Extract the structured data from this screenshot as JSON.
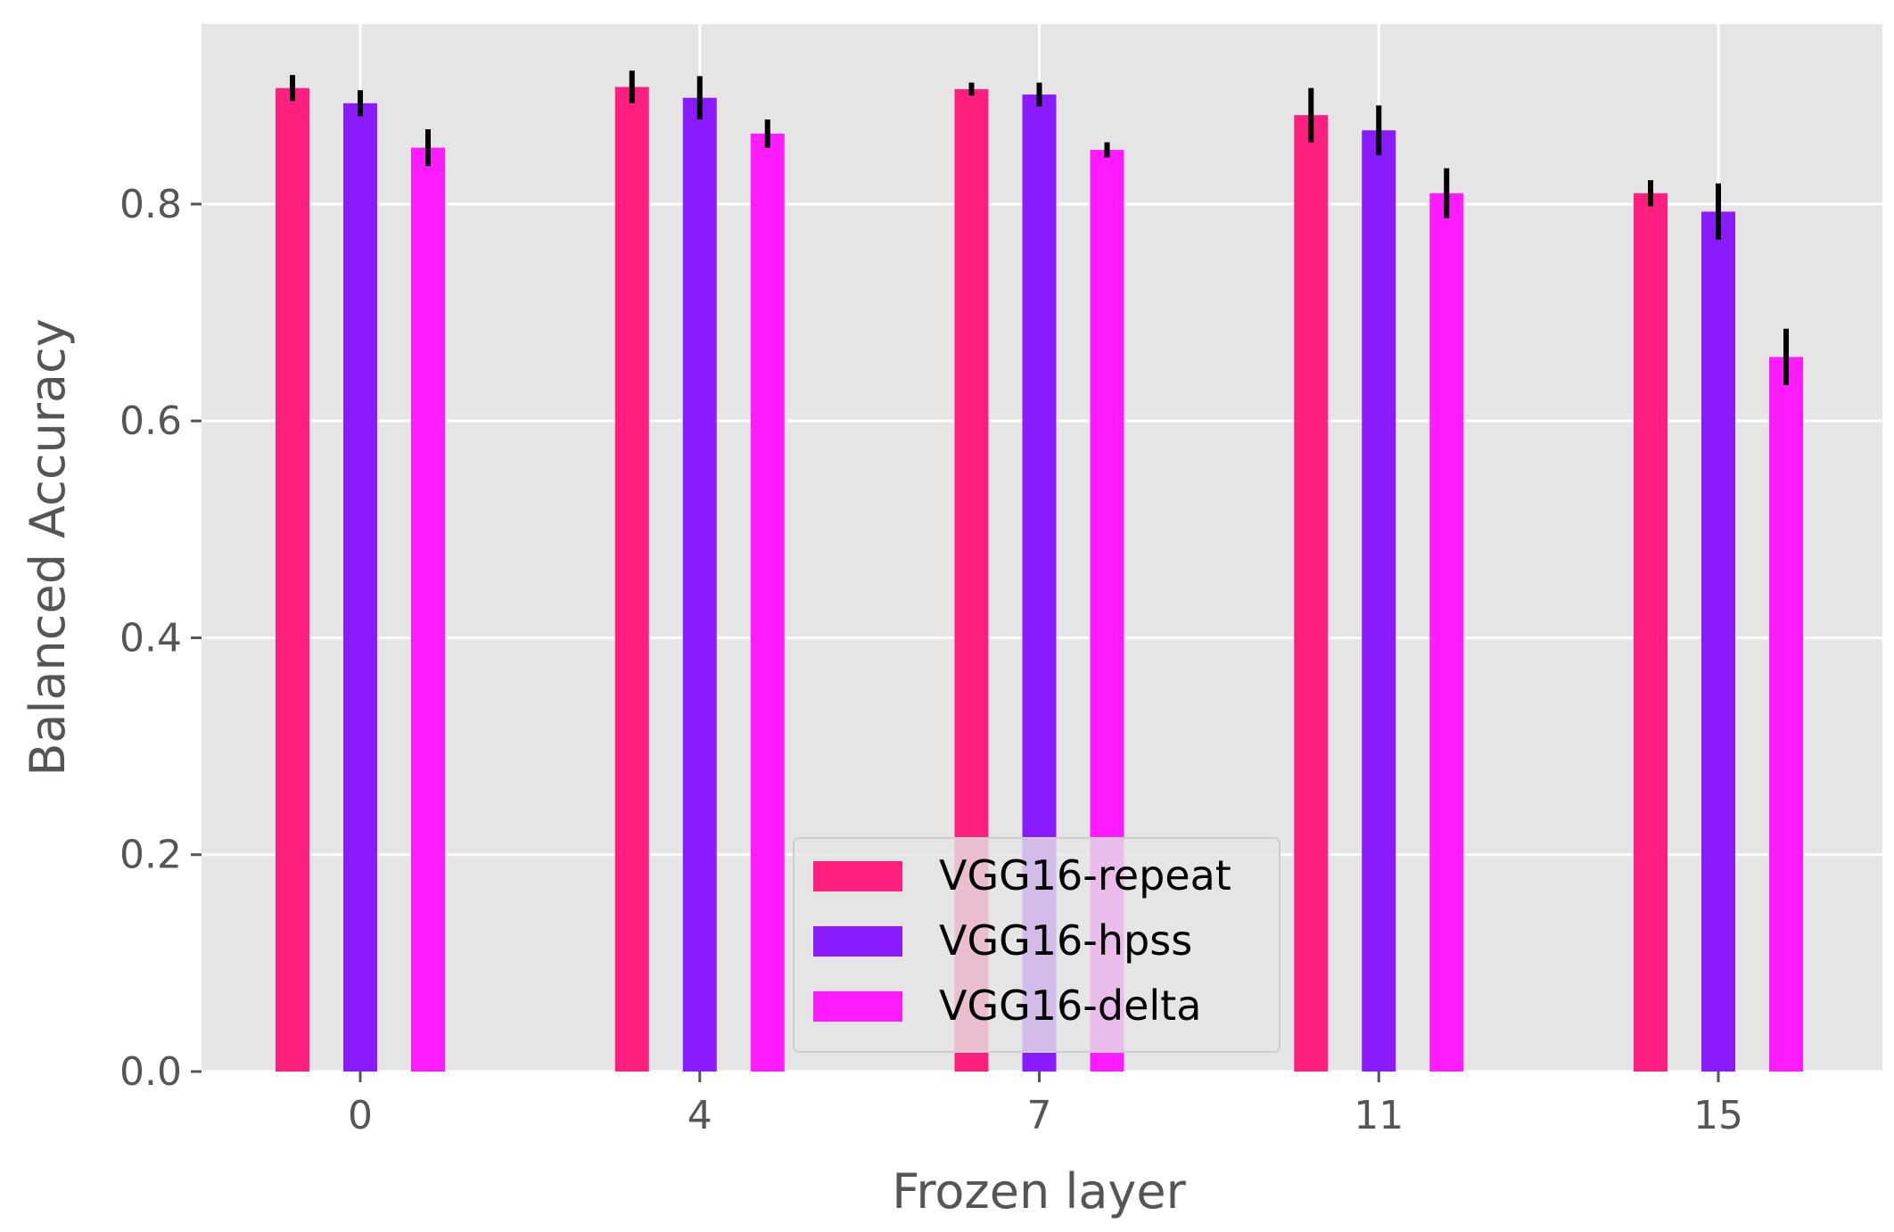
{
  "chart_data": {
    "type": "bar",
    "title": "",
    "xlabel": "Frozen layer",
    "ylabel": "Balanced Accuracy",
    "categories": [
      "0",
      "4",
      "7",
      "11",
      "15"
    ],
    "ylim": [
      0,
      0.966
    ],
    "yticks": [
      0.0,
      0.2,
      0.4,
      0.6,
      0.8
    ],
    "ytick_labels": [
      "0.0",
      "0.2",
      "0.4",
      "0.6",
      "0.8"
    ],
    "grid": true,
    "legend_position": "bottom-center",
    "series": [
      {
        "name": "VGG16-repeat",
        "color": "#ff1f7f",
        "values": [
          0.907,
          0.908,
          0.906,
          0.882,
          0.81
        ],
        "errors": [
          0.012,
          0.015,
          0.006,
          0.025,
          0.012
        ]
      },
      {
        "name": "VGG16-hpss",
        "color": "#8a1bff",
        "values": [
          0.893,
          0.898,
          0.901,
          0.868,
          0.793
        ],
        "errors": [
          0.012,
          0.02,
          0.011,
          0.023,
          0.026
        ]
      },
      {
        "name": "VGG16-delta",
        "color": "#ff1bff",
        "values": [
          0.852,
          0.865,
          0.85,
          0.81,
          0.659
        ],
        "errors": [
          0.017,
          0.013,
          0.007,
          0.023,
          0.026
        ]
      }
    ]
  }
}
